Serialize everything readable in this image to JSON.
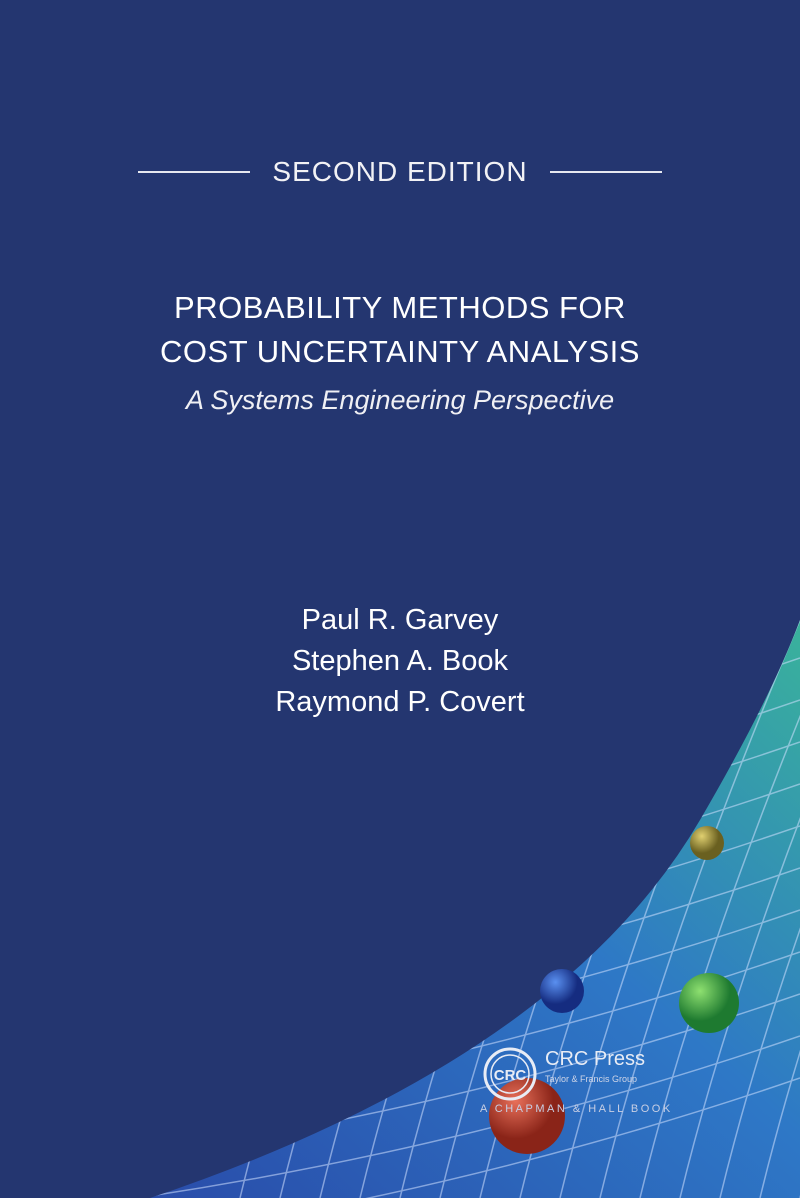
{
  "cover": {
    "edition": "SECOND EDITION",
    "title_lines": [
      "PROBABILITY METHODS FOR",
      "COST UNCERTAINTY ANALYSIS"
    ],
    "subtitle": "A Systems Engineering Perspective",
    "authors": [
      "Paul R. Garvey",
      "Stephen A. Book",
      "Raymond P. Covert"
    ]
  },
  "publisher": {
    "logo_text": "CRC",
    "name": "CRC Press",
    "tagline": "Taylor & Francis Group",
    "imprint": "A CHAPMAN & HALL BOOK"
  },
  "colors": {
    "background": "#243670",
    "mesh_start": "#2f5fc0",
    "mesh_end": "#3fb7a6"
  }
}
